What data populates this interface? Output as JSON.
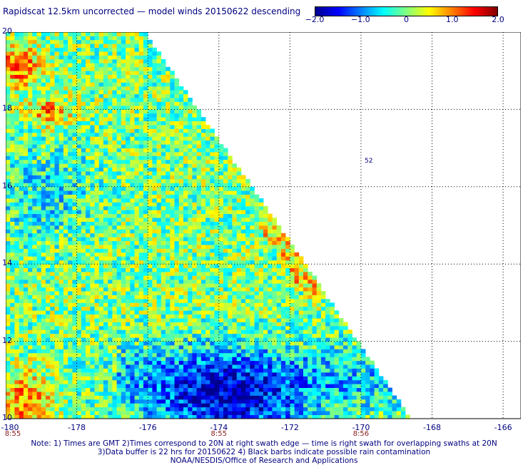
{
  "title": "Rapidscat 12.5km uncorrected — model winds 20150622 descending",
  "colorbar": {
    "ticks": [
      {
        "label": "−2.0",
        "value": -2.0
      },
      {
        "label": "−1.0",
        "value": -1.0
      },
      {
        "label": "0",
        "value": 0
      },
      {
        "label": "1.0",
        "value": 1.0
      },
      {
        "label": "2.0",
        "value": 2.0
      }
    ],
    "colors": [
      "#00008f",
      "#0000ff",
      "#0080ff",
      "#00ffff",
      "#80ff80",
      "#ffff00",
      "#ff8000",
      "#ff0000",
      "#800000"
    ],
    "range": [
      -2.0,
      2.0
    ]
  },
  "map": {
    "lon_range": [
      -180,
      -165.5
    ],
    "lat_range": [
      10,
      20
    ],
    "lat_labels": [
      "20",
      "18",
      "16",
      "14",
      "12",
      "10"
    ],
    "lon_labels": [
      "-180",
      "-178",
      "-176",
      "-174",
      "-172",
      "-170",
      "-168",
      "-166"
    ],
    "swath_time_labels": [
      {
        "label": "8:55",
        "lon": -180
      },
      {
        "label": "8:55",
        "lon": -174
      },
      {
        "label": "8:56",
        "lon": -170
      }
    ],
    "isolated_feature_label": "52",
    "grid": true
  },
  "footer": {
    "line1": "Note: 1) Times are GMT 2)Times correspond to 20N at right swath edge — time is right swath for overlapping swaths at 20N",
    "line2": "3)Data buffer is 22 hrs for 20150622 4) Black barbs indicate possible rain contamination",
    "line3": "NOAA/NESDIS/Office of Research and Applications"
  }
}
